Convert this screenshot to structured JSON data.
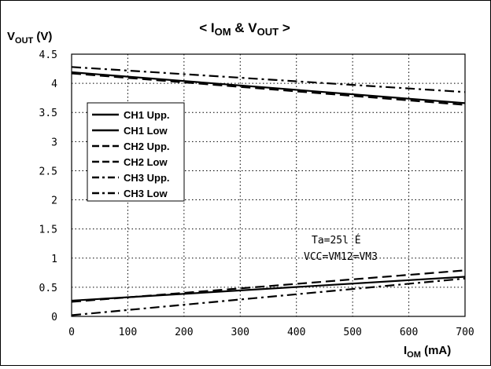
{
  "chart_data": {
    "type": "line",
    "title_prefix": "< I",
    "title_sub1": "OM",
    "title_mid": " & V",
    "title_sub2": "OUT",
    "title_suffix": " >",
    "ylabel_main": "V",
    "ylabel_sub": "OUT",
    "ylabel_unit": " (V)",
    "xlabel_main": "I",
    "xlabel_sub": "OM",
    "xlabel_unit": " (mA)",
    "xlim": [
      0,
      700
    ],
    "ylim": [
      0,
      4.5
    ],
    "x_ticks": [
      "0",
      "100",
      "200",
      "300",
      "400",
      "500",
      "600",
      "700"
    ],
    "y_ticks": [
      "0",
      "0.5",
      "1",
      "1.5",
      "2",
      "2.5",
      "3",
      "3.5",
      "4",
      "4.5"
    ],
    "grid": true,
    "legend_position": "left",
    "annotation_line1": "Ta=25l É",
    "annotation_line2": "VCC=VM12=VM3",
    "series": [
      {
        "name": "CH1 Upp.",
        "style": "solid",
        "x": [
          0,
          700
        ],
        "y": [
          4.19,
          3.66
        ]
      },
      {
        "name": "CH1 Low",
        "style": "solid",
        "x": [
          0,
          700
        ],
        "y": [
          0.27,
          0.68
        ]
      },
      {
        "name": "CH2 Upp.",
        "style": "dash",
        "x": [
          0,
          700
        ],
        "y": [
          4.17,
          3.63
        ]
      },
      {
        "name": "CH2 Low",
        "style": "dash",
        "x": [
          0,
          700
        ],
        "y": [
          0.25,
          0.79
        ]
      },
      {
        "name": "CH3 Upp.",
        "style": "dashdot",
        "x": [
          0,
          700
        ],
        "y": [
          4.28,
          3.85
        ]
      },
      {
        "name": "CH3 Low",
        "style": "dashdot",
        "x": [
          0,
          700
        ],
        "y": [
          0.02,
          0.65
        ]
      }
    ]
  }
}
